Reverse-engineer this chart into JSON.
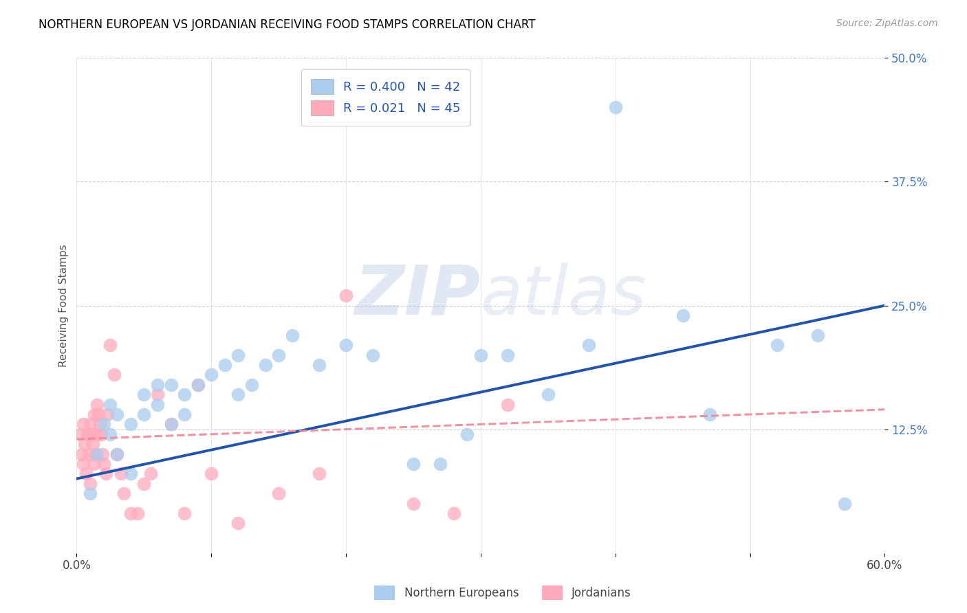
{
  "title": "NORTHERN EUROPEAN VS JORDANIAN RECEIVING FOOD STAMPS CORRELATION CHART",
  "source": "Source: ZipAtlas.com",
  "ylabel": "Receiving Food Stamps",
  "xlim": [
    0.0,
    0.6
  ],
  "ylim": [
    0.0,
    0.5
  ],
  "xticks": [
    0.0,
    0.1,
    0.2,
    0.3,
    0.4,
    0.5,
    0.6
  ],
  "yticks": [
    0.125,
    0.25,
    0.375,
    0.5
  ],
  "ytick_labels": [
    "12.5%",
    "25.0%",
    "37.5%",
    "50.0%"
  ],
  "xtick_labels": [
    "0.0%",
    "",
    "",
    "",
    "",
    "",
    "60.0%"
  ],
  "blue_R": "0.400",
  "blue_N": "42",
  "pink_R": "0.021",
  "pink_N": "45",
  "blue_color": "#AACCEE",
  "pink_color": "#FFAABB",
  "blue_line_color": "#2255AA",
  "pink_line_color": "#EE8899",
  "legend_blue_label": "Northern Europeans",
  "legend_pink_label": "Jordanians",
  "watermark_zip": "ZIP",
  "watermark_atlas": "atlas",
  "blue_x": [
    0.01,
    0.015,
    0.02,
    0.025,
    0.025,
    0.03,
    0.03,
    0.04,
    0.04,
    0.05,
    0.05,
    0.06,
    0.06,
    0.07,
    0.07,
    0.08,
    0.08,
    0.09,
    0.1,
    0.11,
    0.12,
    0.12,
    0.13,
    0.14,
    0.15,
    0.16,
    0.18,
    0.2,
    0.22,
    0.25,
    0.27,
    0.29,
    0.3,
    0.32,
    0.35,
    0.38,
    0.4,
    0.45,
    0.47,
    0.52,
    0.55,
    0.57
  ],
  "blue_y": [
    0.06,
    0.1,
    0.13,
    0.12,
    0.15,
    0.14,
    0.1,
    0.13,
    0.08,
    0.14,
    0.16,
    0.15,
    0.17,
    0.13,
    0.17,
    0.14,
    0.16,
    0.17,
    0.18,
    0.19,
    0.16,
    0.2,
    0.17,
    0.19,
    0.2,
    0.22,
    0.19,
    0.21,
    0.2,
    0.09,
    0.09,
    0.12,
    0.2,
    0.2,
    0.16,
    0.21,
    0.45,
    0.24,
    0.14,
    0.21,
    0.22,
    0.05
  ],
  "pink_x": [
    0.003,
    0.004,
    0.005,
    0.005,
    0.006,
    0.007,
    0.008,
    0.009,
    0.01,
    0.01,
    0.011,
    0.012,
    0.013,
    0.013,
    0.014,
    0.015,
    0.015,
    0.016,
    0.017,
    0.018,
    0.019,
    0.02,
    0.022,
    0.023,
    0.025,
    0.028,
    0.03,
    0.033,
    0.035,
    0.04,
    0.045,
    0.05,
    0.055,
    0.06,
    0.07,
    0.08,
    0.09,
    0.1,
    0.12,
    0.15,
    0.18,
    0.2,
    0.25,
    0.28,
    0.32
  ],
  "pink_y": [
    0.12,
    0.1,
    0.13,
    0.09,
    0.11,
    0.08,
    0.12,
    0.1,
    0.13,
    0.07,
    0.12,
    0.11,
    0.09,
    0.14,
    0.1,
    0.12,
    0.15,
    0.14,
    0.13,
    0.12,
    0.1,
    0.09,
    0.08,
    0.14,
    0.21,
    0.18,
    0.1,
    0.08,
    0.06,
    0.04,
    0.04,
    0.07,
    0.08,
    0.16,
    0.13,
    0.04,
    0.17,
    0.08,
    0.03,
    0.06,
    0.08,
    0.26,
    0.05,
    0.04,
    0.15
  ],
  "blue_line_x0": 0.0,
  "blue_line_y0": 0.075,
  "blue_line_x1": 0.6,
  "blue_line_y1": 0.25,
  "pink_line_x0": 0.0,
  "pink_line_y0": 0.115,
  "pink_line_x1": 0.6,
  "pink_line_y1": 0.145
}
